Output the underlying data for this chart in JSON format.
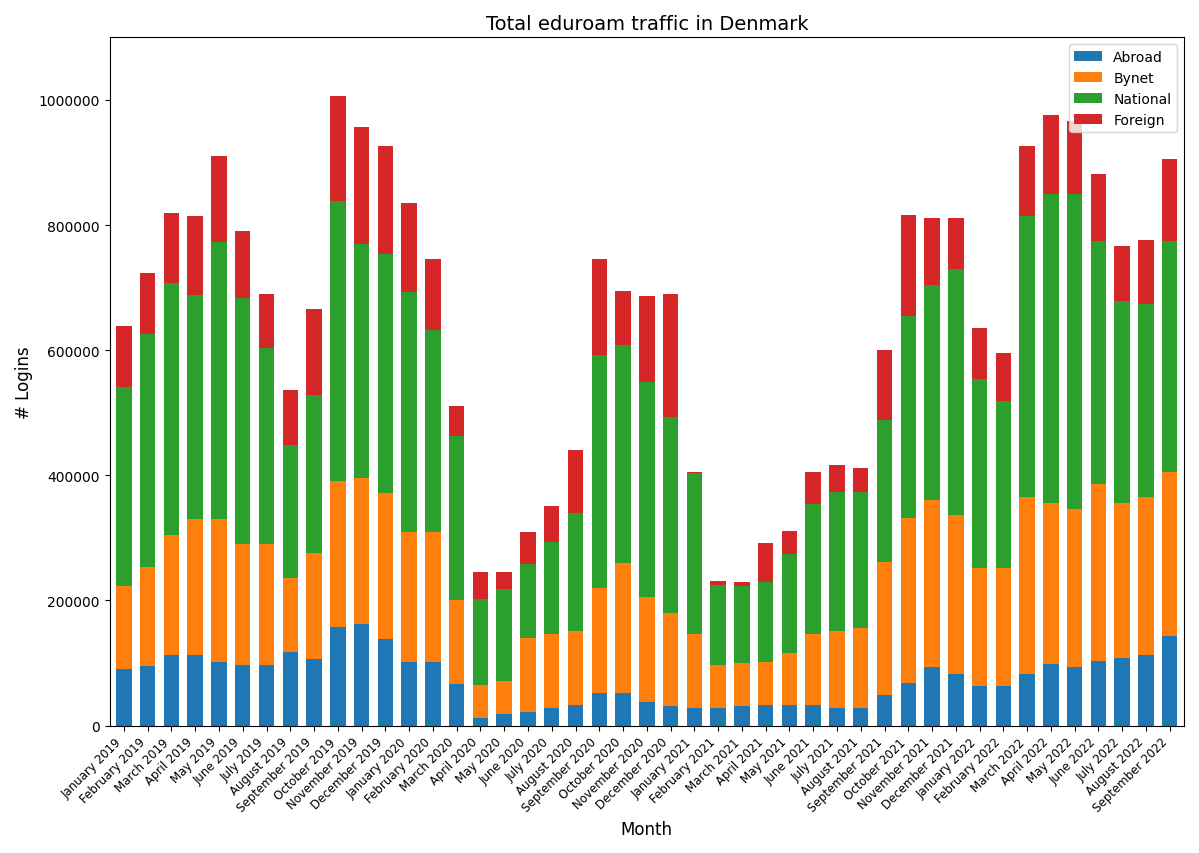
{
  "title": "Total eduroam traffic in Denmark",
  "xlabel": "Month",
  "ylabel": "# Logins",
  "legend_labels": [
    "Abroad",
    "Bynet",
    "National",
    "Foreign"
  ],
  "colors": [
    "#1f77b4",
    "#ff7f0e",
    "#2ca02c",
    "#d62728"
  ],
  "months": [
    "January 2019",
    "February 2019",
    "March 2019",
    "April 2019",
    "May 2019",
    "June 2019",
    "July 2019",
    "August 2019",
    "September 2019",
    "October 2019",
    "November 2019",
    "December 2019",
    "January 2020",
    "February 2020",
    "March 2020",
    "April 2020",
    "May 2020",
    "June 2020",
    "July 2020",
    "August 2020",
    "September 2020",
    "October 2020",
    "November 2020",
    "December 2020",
    "January 2021",
    "February 2021",
    "March 2021",
    "April 2021",
    "May 2021",
    "June 2021",
    "July 2021",
    "August 2021",
    "September 2021",
    "October 2021",
    "November 2021",
    "December 2021",
    "January 2022",
    "February 2022",
    "March 2022",
    "April 2022",
    "May 2022",
    "June 2022",
    "July 2022",
    "August 2022",
    "September 2022"
  ],
  "abroad": [
    90000,
    95000,
    112000,
    112000,
    102000,
    97000,
    97000,
    118000,
    107000,
    158000,
    163000,
    138000,
    102000,
    102000,
    67000,
    12000,
    18000,
    22000,
    28000,
    33000,
    52000,
    52000,
    38000,
    32000,
    28000,
    28000,
    32000,
    33000,
    33000,
    33000,
    28000,
    28000,
    48000,
    68000,
    93000,
    83000,
    63000,
    63000,
    83000,
    98000,
    93000,
    103000,
    108000,
    113000,
    143000
  ],
  "bynet": [
    133000,
    158000,
    193000,
    218000,
    228000,
    193000,
    193000,
    118000,
    168000,
    233000,
    233000,
    233000,
    208000,
    208000,
    133000,
    53000,
    53000,
    118000,
    118000,
    118000,
    168000,
    208000,
    168000,
    148000,
    118000,
    68000,
    68000,
    68000,
    83000,
    113000,
    123000,
    128000,
    213000,
    263000,
    268000,
    253000,
    188000,
    188000,
    283000,
    258000,
    253000,
    283000,
    248000,
    253000,
    263000
  ],
  "national": [
    318000,
    373000,
    403000,
    358000,
    443000,
    393000,
    313000,
    213000,
    253000,
    448000,
    373000,
    383000,
    383000,
    323000,
    263000,
    138000,
    148000,
    118000,
    148000,
    188000,
    373000,
    348000,
    343000,
    313000,
    258000,
    128000,
    123000,
    128000,
    158000,
    208000,
    223000,
    218000,
    228000,
    323000,
    343000,
    393000,
    303000,
    268000,
    448000,
    493000,
    503000,
    388000,
    323000,
    308000,
    368000
  ],
  "foreign": [
    97000,
    97000,
    112000,
    127000,
    137000,
    107000,
    87000,
    87000,
    137000,
    167000,
    187000,
    172000,
    142000,
    112000,
    47000,
    42000,
    27000,
    52000,
    57000,
    102000,
    152000,
    87000,
    137000,
    197000,
    2000,
    7000,
    7000,
    62000,
    37000,
    52000,
    42000,
    37000,
    112000,
    162000,
    107000,
    82000,
    82000,
    77000,
    112000,
    127000,
    117000,
    107000,
    87000,
    102000,
    132000
  ]
}
